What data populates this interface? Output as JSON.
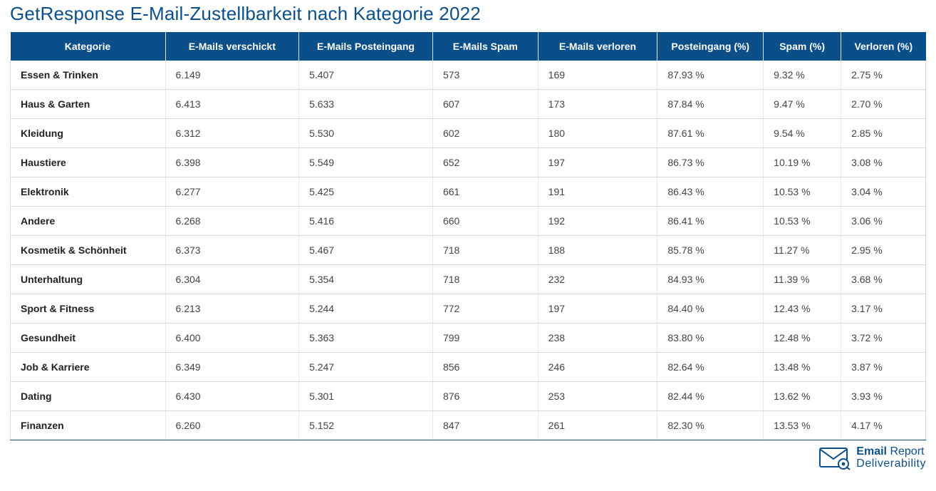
{
  "title": "GetResponse E-Mail-Zustellbarkeit nach Kategorie 2022",
  "columns": [
    "Kategorie",
    "E-Mails verschickt",
    "E-Mails Posteingang",
    "E-Mails Spam",
    "E-Mails verloren",
    "Posteingang (%)",
    "Spam (%)",
    "Verloren (%)"
  ],
  "rows": [
    [
      "Essen & Trinken",
      "6.149",
      "5.407",
      "573",
      "169",
      "87.93 %",
      "9.32 %",
      "2.75 %"
    ],
    [
      "Haus & Garten",
      "6.413",
      "5.633",
      "607",
      "173",
      "87.84 %",
      "9.47 %",
      "2.70 %"
    ],
    [
      "Kleidung",
      "6.312",
      "5.530",
      "602",
      "180",
      "87.61 %",
      "9.54 %",
      "2.85 %"
    ],
    [
      "Haustiere",
      "6.398",
      "5.549",
      "652",
      "197",
      "86.73 %",
      "10.19 %",
      "3.08 %"
    ],
    [
      "Elektronik",
      "6.277",
      "5.425",
      "661",
      "191",
      "86.43 %",
      "10.53 %",
      "3.04 %"
    ],
    [
      "Andere",
      "6.268",
      "5.416",
      "660",
      "192",
      "86.41 %",
      "10.53 %",
      "3.06 %"
    ],
    [
      "Kosmetik & Schönheit",
      "6.373",
      "5.467",
      "718",
      "188",
      "85.78 %",
      "11.27 %",
      "2.95 %"
    ],
    [
      "Unterhaltung",
      "6.304",
      "5.354",
      "718",
      "232",
      "84.93 %",
      "11.39 %",
      "3.68 %"
    ],
    [
      "Sport & Fitness",
      "6.213",
      "5.244",
      "772",
      "197",
      "84.40 %",
      "12.43 %",
      "3.17 %"
    ],
    [
      "Gesundheit",
      "6.400",
      "5.363",
      "799",
      "238",
      "83.80 %",
      "12.48 %",
      "3.72 %"
    ],
    [
      "Job & Karriere",
      "6.349",
      "5.247",
      "856",
      "246",
      "82.64 %",
      "13.48 %",
      "3.87 %"
    ],
    [
      "Dating",
      "6.430",
      "5.301",
      "876",
      "253",
      "82.44 %",
      "13.62 %",
      "3.93 %"
    ],
    [
      "Finanzen",
      "6.260",
      "5.152",
      "847",
      "261",
      "82.30 %",
      "13.53 %",
      "4.17 %"
    ]
  ],
  "logo": {
    "line1_a": "Email",
    "line1_b": "Report",
    "line2": "Deliverability"
  },
  "colors": {
    "header_bg": "#0b4f8a",
    "header_text": "#ffffff",
    "title_color": "#0b4f8a",
    "border": "#d9d9d9"
  },
  "col_classes": [
    "col-cat",
    "col-sent",
    "col-inbox",
    "col-spam",
    "col-lost",
    "col-inboxp",
    "col-spamp",
    "col-lostp"
  ]
}
